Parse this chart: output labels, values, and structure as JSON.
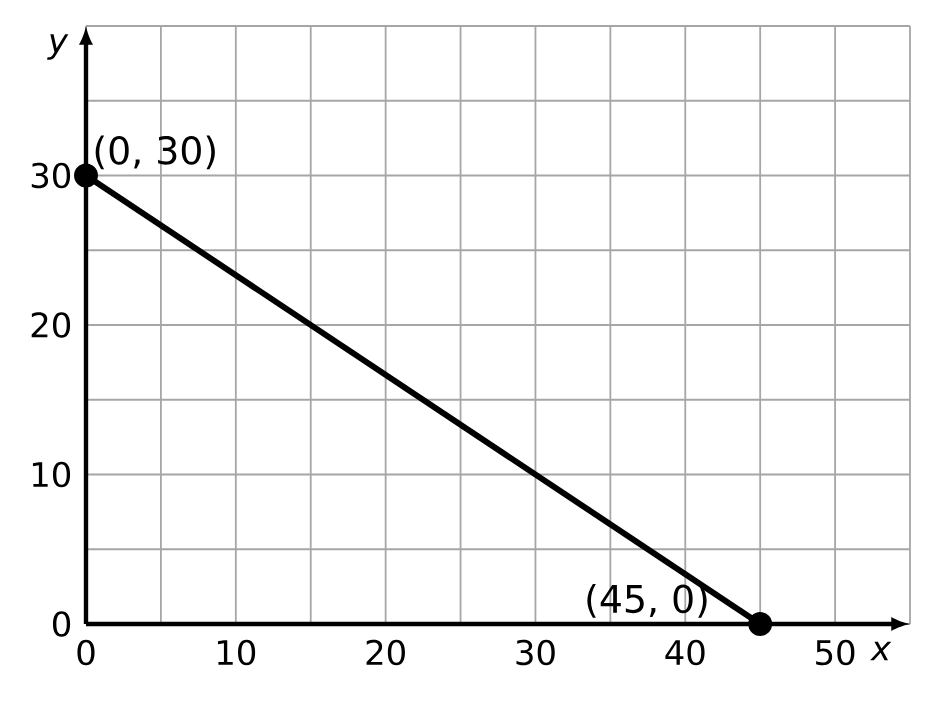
{
  "chart_data": {
    "type": "line",
    "x": [
      0,
      45
    ],
    "series": [
      {
        "color": "#000000",
        "values": [
          30,
          0
        ]
      }
    ],
    "xlabel": "*x*",
    "ylabel": "*y*",
    "xlim": [
      0,
      55
    ],
    "ylim": [
      0,
      40
    ],
    "xticks": [
      0,
      {
        "value": 5,
        "label": null
      },
      10,
      {
        "value": 15,
        "label": null
      },
      20,
      {
        "value": 25,
        "label": null
      },
      30,
      {
        "value": 35,
        "label": null
      },
      40,
      {
        "value": 45,
        "label": null
      },
      50,
      {
        "value": 55,
        "label": null
      }
    ],
    "yticks": [
      0,
      {
        "value": 5,
        "label": null
      },
      10,
      {
        "value": 15,
        "label": null
      },
      20,
      {
        "value": 25,
        "label": null
      },
      30,
      {
        "value": 35,
        "label": null
      },
      {
        "value": 40,
        "label": null
      }
    ],
    "grid": true,
    "marker": "circle",
    "line_style": "solid",
    "annotations": [
      {
        "text": "(0, 30)",
        "x": 0,
        "y": 30
      },
      {
        "text": "(45, 0)",
        "x": 45,
        "y": 0
      }
    ]
  }
}
